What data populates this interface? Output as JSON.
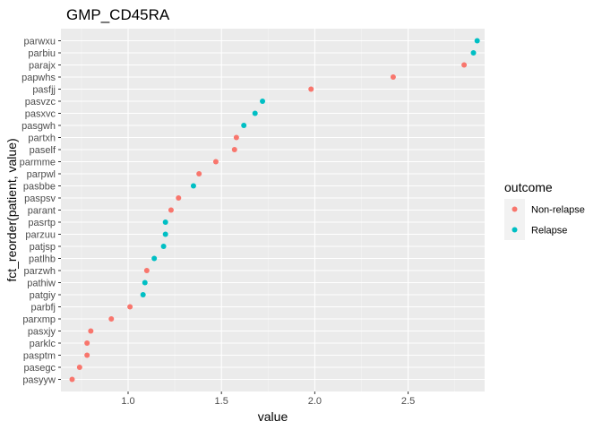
{
  "chart_data": {
    "type": "scatter",
    "title": "GMP_CD45RA",
    "xlabel": "value",
    "ylabel": "fct_reorder(patient, value)",
    "xlim": [
      0.64,
      2.91
    ],
    "x_ticks": [
      "1.0",
      "1.5",
      "2.0",
      "2.5"
    ],
    "grid": true,
    "legend_position": "right",
    "legend_title": "outcome",
    "series": [
      {
        "name": "Non-relapse",
        "color": "#F8766D"
      },
      {
        "name": "Relapse",
        "color": "#00BFC4"
      }
    ],
    "points": [
      {
        "patient": "pasyyw",
        "value": 0.7,
        "outcome": "Non-relapse"
      },
      {
        "patient": "pasegc",
        "value": 0.74,
        "outcome": "Non-relapse"
      },
      {
        "patient": "pasptm",
        "value": 0.78,
        "outcome": "Non-relapse"
      },
      {
        "patient": "parklc",
        "value": 0.78,
        "outcome": "Non-relapse"
      },
      {
        "patient": "pasxjy",
        "value": 0.8,
        "outcome": "Non-relapse"
      },
      {
        "patient": "parxmp",
        "value": 0.91,
        "outcome": "Non-relapse"
      },
      {
        "patient": "parbfj",
        "value": 1.01,
        "outcome": "Non-relapse"
      },
      {
        "patient": "patgiy",
        "value": 1.08,
        "outcome": "Relapse"
      },
      {
        "patient": "pathiw",
        "value": 1.09,
        "outcome": "Relapse"
      },
      {
        "patient": "parzwh",
        "value": 1.1,
        "outcome": "Non-relapse"
      },
      {
        "patient": "patlhb",
        "value": 1.14,
        "outcome": "Relapse"
      },
      {
        "patient": "patjsp",
        "value": 1.19,
        "outcome": "Relapse"
      },
      {
        "patient": "parzuu",
        "value": 1.2,
        "outcome": "Relapse"
      },
      {
        "patient": "pasrtp",
        "value": 1.2,
        "outcome": "Relapse"
      },
      {
        "patient": "parant",
        "value": 1.23,
        "outcome": "Non-relapse"
      },
      {
        "patient": "paspsv",
        "value": 1.27,
        "outcome": "Non-relapse"
      },
      {
        "patient": "pasbbe",
        "value": 1.35,
        "outcome": "Relapse"
      },
      {
        "patient": "parpwl",
        "value": 1.38,
        "outcome": "Non-relapse"
      },
      {
        "patient": "parmme",
        "value": 1.47,
        "outcome": "Non-relapse"
      },
      {
        "patient": "paself",
        "value": 1.57,
        "outcome": "Non-relapse"
      },
      {
        "patient": "partxh",
        "value": 1.58,
        "outcome": "Non-relapse"
      },
      {
        "patient": "pasgwh",
        "value": 1.62,
        "outcome": "Relapse"
      },
      {
        "patient": "pasxvc",
        "value": 1.68,
        "outcome": "Relapse"
      },
      {
        "patient": "pasvzc",
        "value": 1.72,
        "outcome": "Relapse"
      },
      {
        "patient": "pasfjj",
        "value": 1.98,
        "outcome": "Non-relapse"
      },
      {
        "patient": "papwhs",
        "value": 2.42,
        "outcome": "Non-relapse"
      },
      {
        "patient": "parajx",
        "value": 2.8,
        "outcome": "Non-relapse"
      },
      {
        "patient": "parbiu",
        "value": 2.85,
        "outcome": "Relapse"
      },
      {
        "patient": "parwxu",
        "value": 2.87,
        "outcome": "Relapse"
      }
    ]
  }
}
